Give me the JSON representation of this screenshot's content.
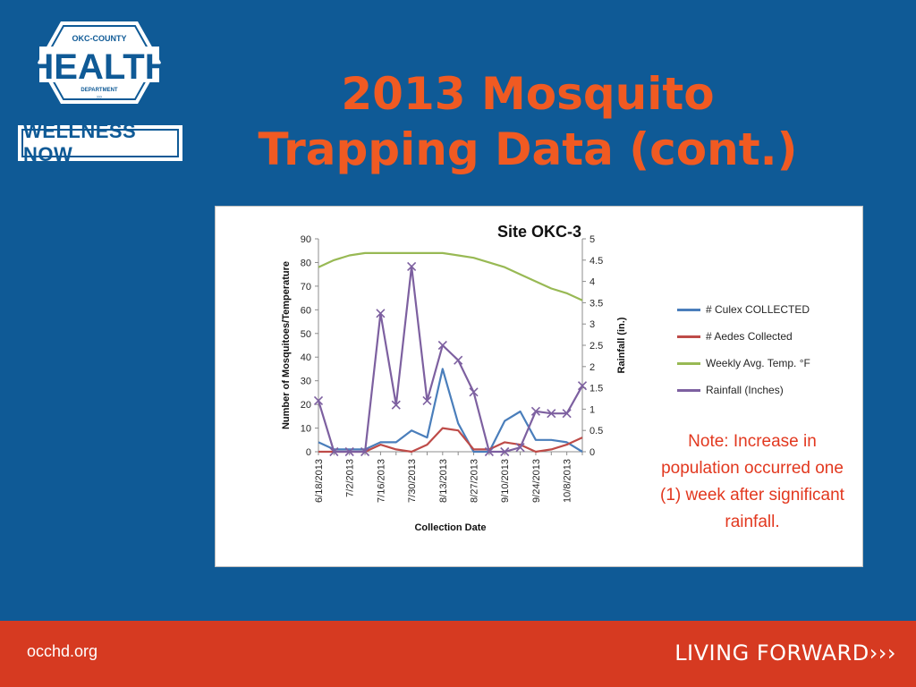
{
  "logo": {
    "top_text": "OKC-COUNTY",
    "main_text": "HEALTH",
    "bottom_text": "DEPARTMENT",
    "wellness": "WELLNESS NOW"
  },
  "title": {
    "line1": "2013 Mosquito",
    "line2": "Trapping Data (cont.)"
  },
  "note": "Note: Increase in population occurred one (1) week after significant rainfall.",
  "footer": {
    "url": "occhd.org",
    "tagline": "LIVING FORWARD›››"
  },
  "colors": {
    "background": "#0f5a96",
    "title": "#f05a22",
    "footer": "#d63a21",
    "note": "#e2381f"
  },
  "chart_data": {
    "type": "line",
    "title": "Site OKC-3",
    "xlabel": "Collection Date",
    "ylabel": "Number of Mosquitoes/Temperature",
    "y2label": "Rainfall (in.)",
    "ylim": [
      0,
      90
    ],
    "y_ticks": [
      0,
      10,
      20,
      30,
      40,
      50,
      60,
      70,
      80,
      90
    ],
    "y2lim": [
      0,
      5
    ],
    "y2_ticks": [
      "0",
      "0.5",
      "1",
      "1.5",
      "2",
      "2.5",
      "3",
      "3.5",
      "4",
      "4.5",
      "5"
    ],
    "x_tick_labels": [
      "6/18/2013",
      "7/2/2013",
      "7/16/2013",
      "7/30/2013",
      "8/13/2013",
      "8/27/2013",
      "9/10/2013",
      "9/24/2013",
      "10/8/2013"
    ],
    "x": [
      "6/18/2013",
      "6/25/2013",
      "7/2/2013",
      "7/9/2013",
      "7/16/2013",
      "7/23/2013",
      "7/30/2013",
      "8/6/2013",
      "8/13/2013",
      "8/20/2013",
      "8/27/2013",
      "9/3/2013",
      "9/10/2013",
      "9/17/2013",
      "9/24/2013",
      "10/1/2013",
      "10/8/2013",
      "10/15/2013"
    ],
    "legend_position": "right",
    "grid": false,
    "series": [
      {
        "name": "# Culex COLLECTED",
        "color": "#4a7ebb",
        "axis": "left",
        "values": [
          4,
          1,
          1,
          1,
          4,
          4,
          9,
          6,
          35,
          12,
          0,
          0,
          13,
          17,
          5,
          5,
          4,
          0
        ]
      },
      {
        "name": "# Aedes Collected",
        "color": "#be4b48",
        "axis": "left",
        "values": [
          0,
          0,
          0,
          0,
          3,
          1,
          0,
          3,
          10,
          9,
          1,
          1,
          4,
          3,
          0,
          1,
          3,
          6
        ]
      },
      {
        "name": "Weekly Avg. Temp. °F",
        "color": "#98b954",
        "axis": "left",
        "values": [
          78,
          81,
          83,
          84,
          84,
          84,
          84,
          84,
          84,
          83,
          82,
          80,
          78,
          75,
          72,
          69,
          67,
          64
        ]
      },
      {
        "name": "Rainfall (Inches)",
        "color": "#7d60a0",
        "axis": "right",
        "marker": "x",
        "values": [
          1.2,
          0,
          0,
          0,
          3.25,
          1.1,
          4.35,
          1.2,
          2.5,
          2.15,
          1.4,
          0,
          0,
          0.1,
          0.95,
          0.9,
          0.9,
          1.55
        ]
      }
    ]
  }
}
